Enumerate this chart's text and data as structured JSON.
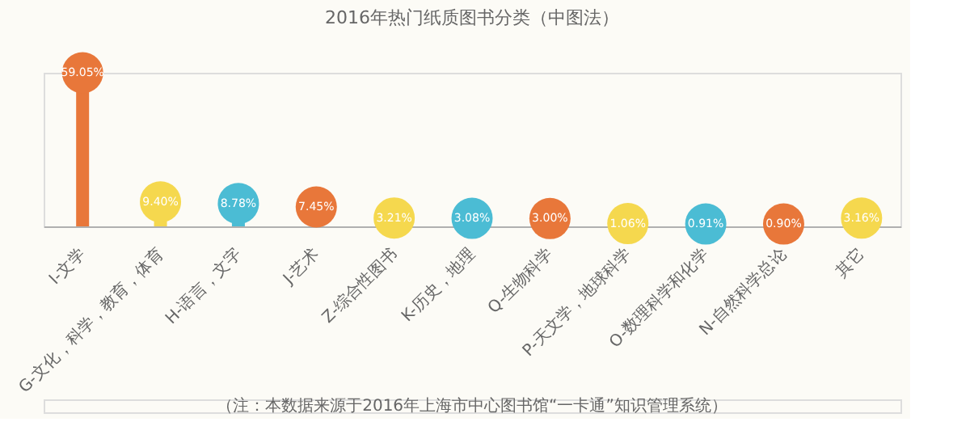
{
  "chart_data": {
    "type": "lollipop",
    "title": "2016年热门纸质图书分类（中图法）",
    "categories": [
      "I-文学",
      "G-文化，科学，教育，体育",
      "H-语言，文字",
      "J-艺术",
      "Z-综合性图书",
      "K-历史，地理",
      "Q-生物科学",
      "P-天文学，地球科学",
      "O-数理科学和化学",
      "N-自然科学总论",
      "其它"
    ],
    "values": [
      59.05,
      9.4,
      8.78,
      7.45,
      3.21,
      3.08,
      3.0,
      1.06,
      0.91,
      0.9,
      3.16
    ],
    "value_labels": [
      "59.05%",
      "9.40%",
      "8.78%",
      "7.45%",
      "3.21%",
      "3.08%",
      "3.00%",
      "1.06%",
      "0.91%",
      "0.90%",
      "3.16%"
    ],
    "colors": [
      "#e8773a",
      "#f5d84e",
      "#4bbcd4",
      "#e8773a",
      "#f5d84e",
      "#4bbcd4",
      "#e8773a",
      "#f5d84e",
      "#4bbcd4",
      "#e8773a",
      "#f5d84e"
    ],
    "annotations": [
      "（注：本数据来源于2016年上海市中心图书馆“一卡通”知识管理系统）"
    ],
    "grid": false
  }
}
